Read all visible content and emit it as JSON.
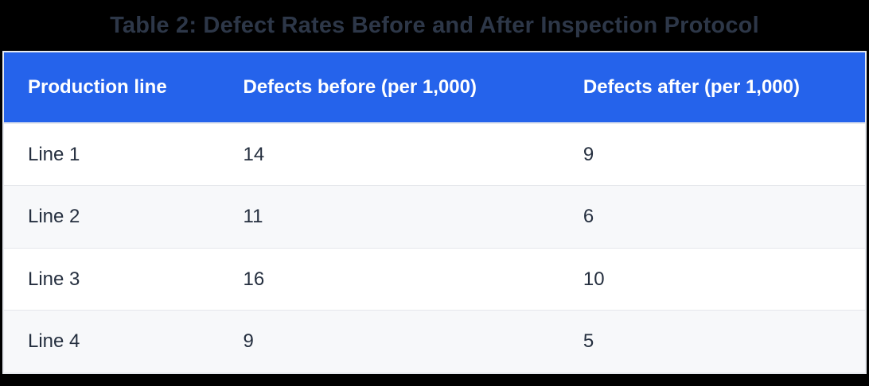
{
  "title": "Table 2: Defect Rates Before and After Inspection Protocol",
  "table": {
    "columns": [
      "Production line",
      "Defects before (per 1,000)",
      "Defects after (per 1,000)"
    ],
    "rows": [
      [
        "Line 1",
        "14",
        "9"
      ],
      [
        "Line 2",
        "11",
        "6"
      ],
      [
        "Line 3",
        "16",
        "10"
      ],
      [
        "Line 4",
        "9",
        "5"
      ]
    ]
  },
  "colors": {
    "header_background": "#2563eb",
    "header_text": "#ffffff",
    "title_text": "#2d3748",
    "body_text": "#252f3f",
    "row_alt_background": "#f7f8fa",
    "row_background": "#ffffff",
    "border": "#e7eaef",
    "page_background": "#000000"
  },
  "chart_data": {
    "type": "table",
    "title": "Table 2: Defect Rates Before and After Inspection Protocol",
    "columns": [
      "Production line",
      "Defects before (per 1,000)",
      "Defects after (per 1,000)"
    ],
    "rows": [
      [
        "Line 1",
        14,
        9
      ],
      [
        "Line 2",
        11,
        6
      ],
      [
        "Line 3",
        16,
        10
      ],
      [
        "Line 4",
        9,
        5
      ]
    ]
  }
}
